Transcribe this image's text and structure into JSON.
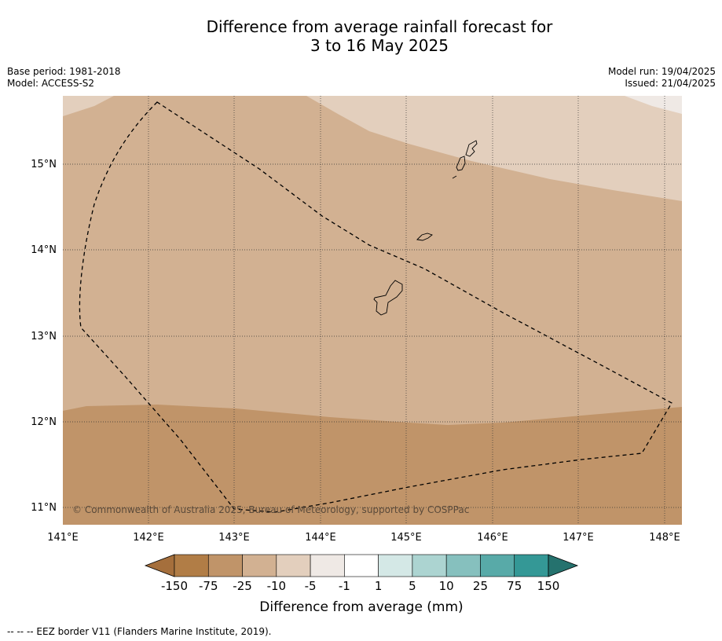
{
  "title": {
    "line1": "Difference from average rainfall forecast for",
    "line2": "3 to 16 May 2025"
  },
  "meta": {
    "base_period": "Base period: 1981-2018",
    "model": "Model: ACCESS-S2",
    "model_run": "Model run: 19/04/2025",
    "issued": "Issued: 21/04/2025"
  },
  "map": {
    "lon_range": [
      141.0,
      148.2
    ],
    "lat_range": [
      10.8,
      15.8
    ],
    "lon_ticks": [
      "141°E",
      "142°E",
      "143°E",
      "144°E",
      "145°E",
      "146°E",
      "147°E",
      "148°E"
    ],
    "lat_ticks": [
      "15°N",
      "14°N",
      "13°N",
      "12°N",
      "11°N"
    ],
    "copyright": "© Commonwealth of Australia 2025, Bureau of Meteorology, supported by COSPPac",
    "category_colors": {
      "drier_-25_to_-75": "#c09469",
      "drier_-10_to_-25": "#d2b192",
      "drier_-5_to_-10": "#e3cfbd",
      "near_-1_to_-5": "#efe9e5"
    }
  },
  "colorbar": {
    "title": "Difference from average (mm)",
    "labels": [
      "-150",
      "-75",
      "-25",
      "-10",
      "-5",
      "-1",
      "1",
      "5",
      "10",
      "25",
      "75",
      "150"
    ],
    "colors": [
      "#a56f3c",
      "#b17d46",
      "#c09469",
      "#d2b192",
      "#e3cfbd",
      "#efe9e5",
      "#ffffff",
      "#d4e8e6",
      "#acd4d1",
      "#86c0be",
      "#58aaa8",
      "#349896",
      "#25726e"
    ]
  },
  "footer": "--  --  -- EEZ border V11 (Flanders Marine Institute, 2019)."
}
